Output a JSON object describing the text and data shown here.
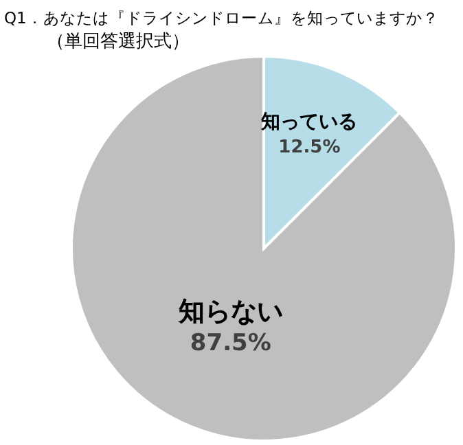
{
  "chart_data": {
    "type": "pie",
    "title": "Q1．あなたは『ドライシンドローム』を知っていますか？",
    "subtitle": "（単回答選択式）",
    "categories": [
      "知っている",
      "知らない"
    ],
    "values": [
      12.5,
      87.5
    ],
    "colors": [
      "#b7dde8",
      "#bfbfbf"
    ],
    "value_labels": [
      "12.5%",
      "87.5%"
    ],
    "legend": false
  }
}
